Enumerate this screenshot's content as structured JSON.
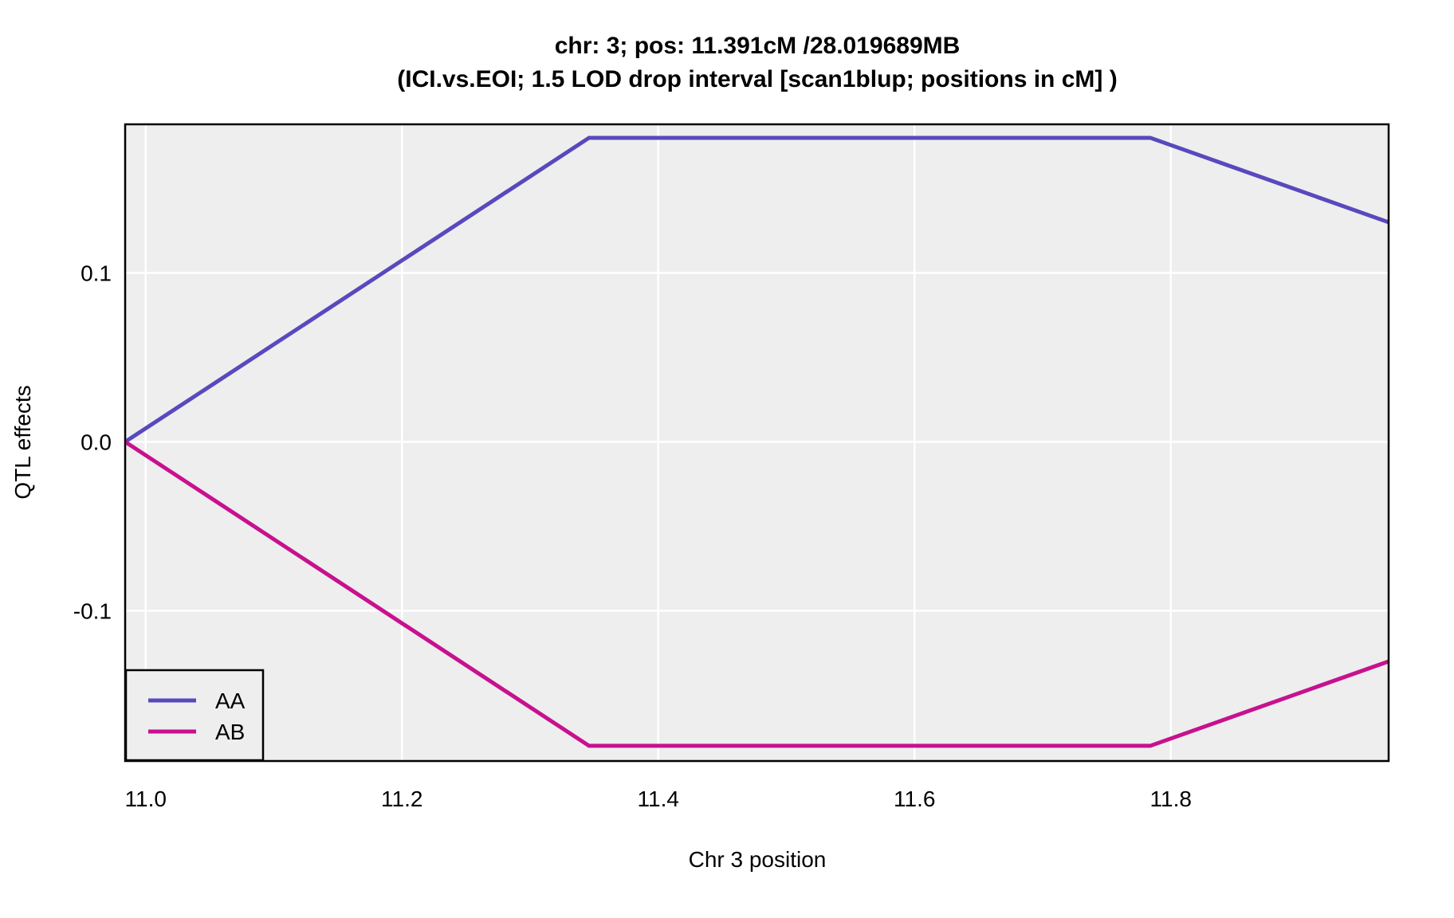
{
  "title": {
    "line1": "chr: 3; pos: 11.391cM /28.019689MB",
    "line2": "(ICI.vs.EOI; 1.5 LOD drop interval [scan1blup; positions in cM] )"
  },
  "axes": {
    "x_label": "Chr 3 position",
    "y_label": "QTL effects",
    "x_range": [
      10.984,
      11.97
    ],
    "y_range": [
      -0.189,
      0.188
    ],
    "x_ticks": [
      {
        "label": "11.0",
        "value": 11.0
      },
      {
        "label": "11.2",
        "value": 11.2
      },
      {
        "label": "11.4",
        "value": 11.4
      },
      {
        "label": "11.6",
        "value": 11.6
      },
      {
        "label": "11.8",
        "value": 11.8
      }
    ],
    "y_ticks": [
      {
        "label": "0.1",
        "value": 0.1
      },
      {
        "label": "0.0",
        "value": 0.0
      },
      {
        "label": "-0.1",
        "value": -0.1
      }
    ]
  },
  "legend": {
    "entries": [
      "AA",
      "AB"
    ],
    "position": "bottom-left"
  },
  "colors": {
    "background": "#FFFFFF",
    "panel_bg": "#EEEEEE",
    "grid": "#FFFFFF",
    "panel_border": "#000000",
    "text": "#000000",
    "series_aa": "#5849BE",
    "series_ab": "#C7118E"
  },
  "chart_data": {
    "type": "line",
    "title": "chr: 3; pos: 11.391cM /28.019689MB (ICI.vs.EOI; 1.5 LOD drop interval [scan1blup; positions in cM] )",
    "xlabel": "Chr 3 position",
    "ylabel": "QTL effects",
    "xlim": [
      10.984,
      11.97
    ],
    "ylim": [
      -0.189,
      0.188
    ],
    "grid": "major-only",
    "legend_position": "bottom-left",
    "series": [
      {
        "name": "AA",
        "color": "#5849BE",
        "x": [
          10.984,
          11.346,
          11.784,
          11.97
        ],
        "y": [
          0.0,
          0.18,
          0.18,
          0.13
        ]
      },
      {
        "name": "AB",
        "color": "#C7118E",
        "x": [
          10.984,
          11.346,
          11.784,
          11.97
        ],
        "y": [
          0.0,
          -0.18,
          -0.18,
          -0.13
        ]
      }
    ]
  }
}
